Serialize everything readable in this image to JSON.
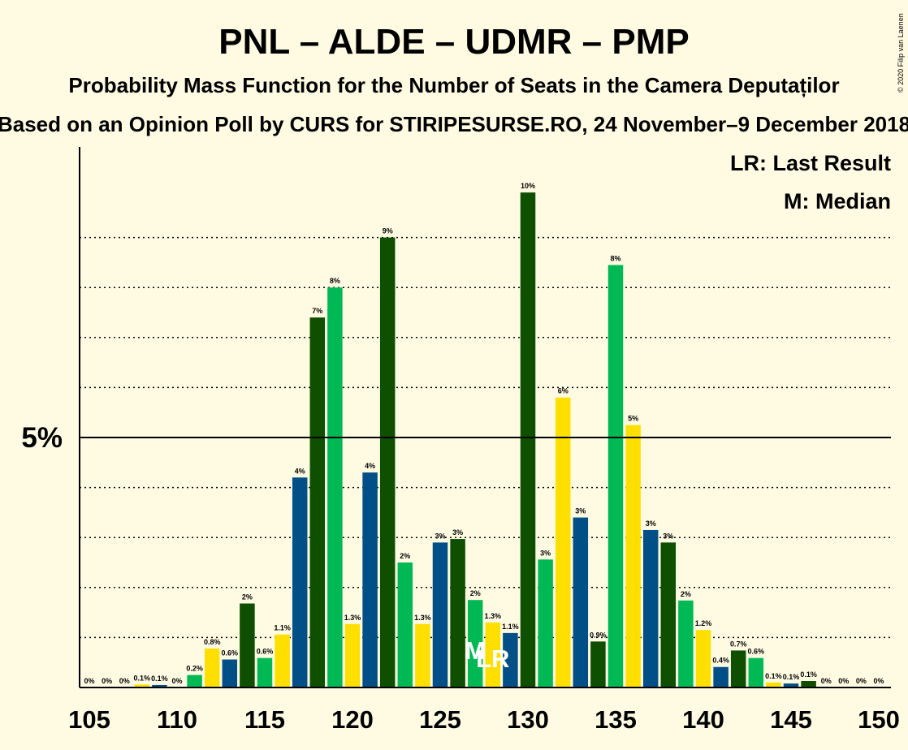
{
  "title": "PNL – ALDE – UDMR – PMP",
  "subtitle": "Probability Mass Function for the Number of Seats in the Camera Deputaților",
  "subtitle2": "Based on an Opinion Poll by CURS for STIRIPESURSE.RO, 24 November–9 December 2018",
  "copyright": "© 2020 Filip van Laenen",
  "legend_lr": "LR: Last Result",
  "legend_m": "M: Median",
  "background_color": "#fffbe3",
  "colors": {
    "dark_green": "#0f4f00",
    "green": "#00b955",
    "yellow": "#ffdf00",
    "blue": "#004f86"
  },
  "chart_data": {
    "type": "bar",
    "x": [
      105,
      106,
      107,
      108,
      109,
      110,
      111,
      112,
      113,
      114,
      115,
      116,
      117,
      118,
      119,
      120,
      121,
      122,
      123,
      124,
      125,
      126,
      127,
      128,
      129,
      130,
      131,
      132,
      133,
      134,
      135,
      136,
      137,
      138,
      139,
      140,
      141,
      142,
      143,
      144,
      145,
      146,
      147,
      148,
      149,
      150
    ],
    "values": [
      0,
      0,
      0,
      0.06,
      0.05,
      0,
      0.25,
      0.78,
      0.56,
      1.68,
      0.59,
      1.06,
      4.2,
      7.4,
      8.0,
      1.27,
      4.3,
      9.0,
      2.5,
      1.27,
      2.9,
      2.97,
      1.75,
      1.3,
      1.09,
      9.9,
      2.56,
      5.8,
      3.4,
      0.92,
      8.45,
      5.25,
      3.15,
      2.9,
      1.74,
      1.15,
      0.41,
      0.74,
      0.59,
      0.1,
      0.08,
      0.13,
      0,
      0,
      0,
      0
    ],
    "labels": [
      "0%",
      "0%",
      "0%",
      "0.1%",
      "0.1%",
      "0%",
      "0.2%",
      "0.8%",
      "0.6%",
      "2%",
      "0.6%",
      "1.1%",
      "4%",
      "7%",
      "8%",
      "1.3%",
      "4%",
      "9%",
      "2%",
      "1.3%",
      "3%",
      "3%",
      "2%",
      "1.3%",
      "1.1%",
      "10%",
      "3%",
      "6%",
      "3%",
      "0.9%",
      "8%",
      "5%",
      "3%",
      "3%",
      "2%",
      "1.2%",
      "0.4%",
      "0.7%",
      "0.6%",
      "0.1%",
      "0.1%",
      "0.1%",
      "0%",
      "0%",
      "0%",
      "0%"
    ],
    "bar_colors": [
      "green",
      "yellow",
      "blue",
      "yellow",
      "blue",
      "green",
      "green",
      "yellow",
      "blue",
      "dark_green",
      "green",
      "yellow",
      "blue",
      "dark_green",
      "green",
      "yellow",
      "blue",
      "dark_green",
      "green",
      "yellow",
      "blue",
      "dark_green",
      "green",
      "yellow",
      "blue",
      "dark_green",
      "green",
      "yellow",
      "blue",
      "dark_green",
      "green",
      "yellow",
      "blue",
      "dark_green",
      "green",
      "yellow",
      "blue",
      "dark_green",
      "green",
      "yellow",
      "blue",
      "dark_green",
      "green",
      "yellow",
      "blue",
      "dark_green"
    ],
    "x_ticks": [
      "105",
      "110",
      "115",
      "120",
      "125",
      "130",
      "135",
      "140",
      "145",
      "150"
    ],
    "y_tick_label": "5%",
    "y_tick_value": 5,
    "ylim": [
      0,
      10.8
    ],
    "median_seat": 127,
    "median_mark": "M",
    "last_result_seat": 128,
    "last_result_mark": "LR",
    "grid": "dotted, every 1%"
  }
}
